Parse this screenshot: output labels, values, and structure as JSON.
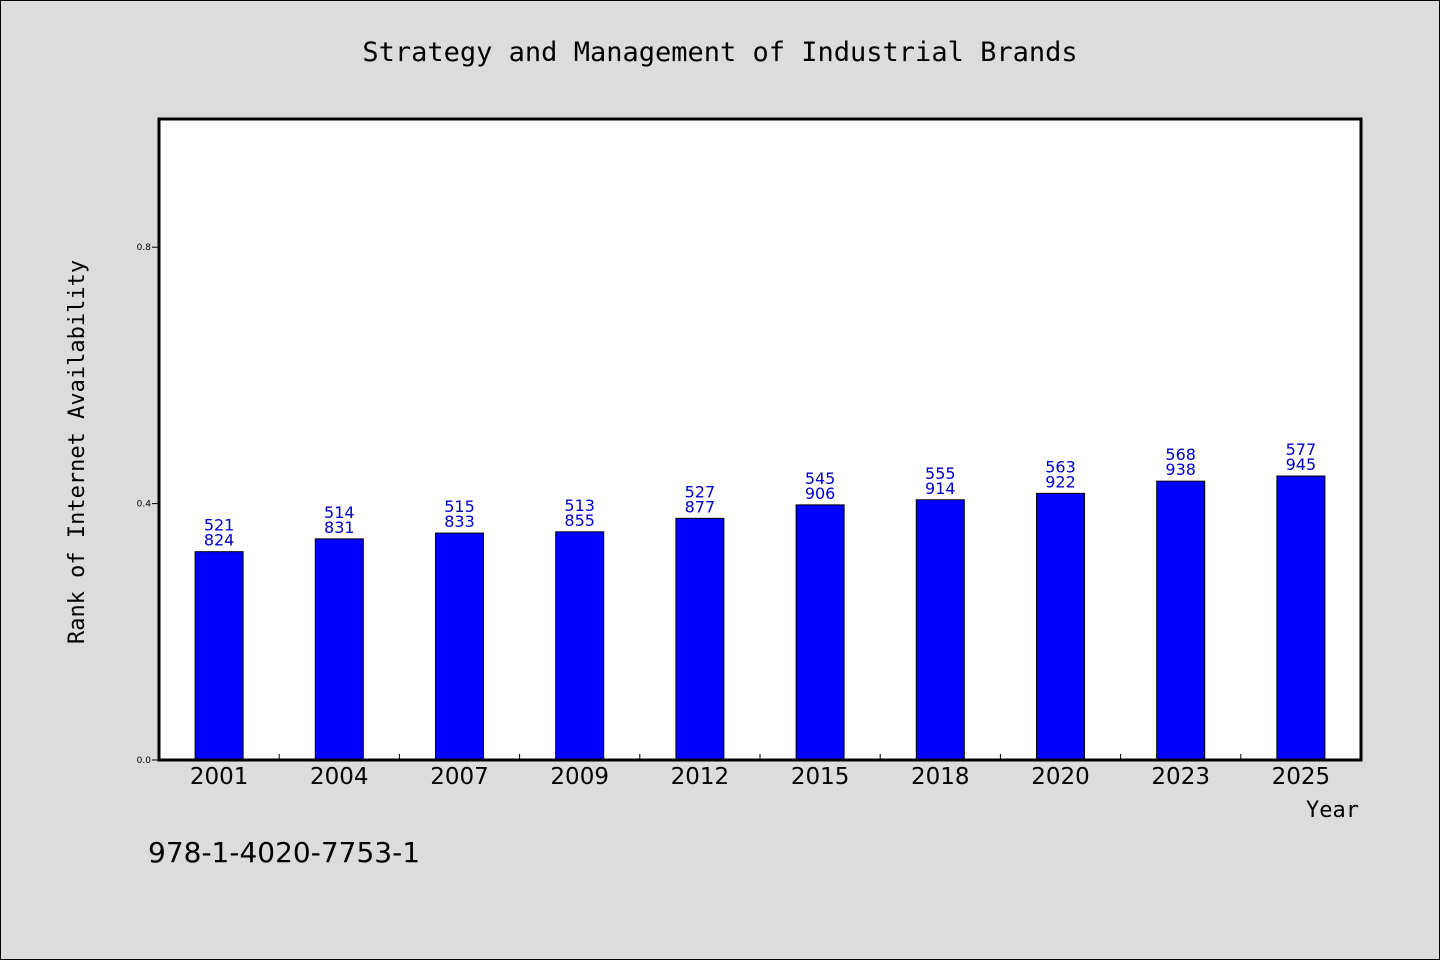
{
  "chart_data": {
    "type": "bar",
    "title": "Strategy and Management of Industrial Brands",
    "xlabel": "Year",
    "ylabel": "Rank of Internet Availability",
    "categories": [
      "2001",
      "2004",
      "2007",
      "2009",
      "2012",
      "2015",
      "2018",
      "2020",
      "2023",
      "2025"
    ],
    "values": [
      0.325,
      0.345,
      0.354,
      0.356,
      0.377,
      0.398,
      0.406,
      0.416,
      0.435,
      0.443
    ],
    "label_top": [
      "521",
      "514",
      "515",
      "513",
      "527",
      "545",
      "555",
      "563",
      "568",
      "577"
    ],
    "label_bottom": [
      "824",
      "831",
      "833",
      "855",
      "877",
      "906",
      "914",
      "922",
      "938",
      "945"
    ],
    "ylim": [
      0,
      1.0
    ],
    "yticks": [
      0.0,
      0.4,
      0.8
    ],
    "ytick_labels": [
      "0.0",
      "0.4",
      "0.8"
    ],
    "bar_color": "#0000ff",
    "label_color": "#0000cc",
    "grid": false
  },
  "footer": {
    "isbn": "978-1-4020-7753-1"
  }
}
